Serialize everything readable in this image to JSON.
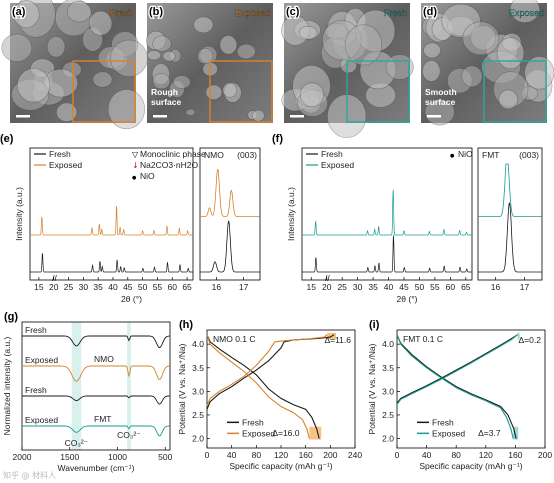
{
  "colors": {
    "fresh": "#1a1a1a",
    "exposed_nmo": "#d9822b",
    "exposed_fmt": "#1a9b8f",
    "box_nmo": "#d9822b",
    "box_fmt": "#2aa89b"
  },
  "sem": [
    {
      "label": "(a)",
      "tag": "Fresh",
      "tag_color": "#d9822b",
      "caption": ""
    },
    {
      "label": "(b)",
      "tag": "Exposed",
      "tag_color": "#d9822b",
      "caption": "Rough\nsurface"
    },
    {
      "label": "(c)",
      "tag": "Fresh",
      "tag_color": "#2aa89b",
      "caption": ""
    },
    {
      "label": "(d)",
      "tag": "Exposed",
      "tag_color": "#2aa89b",
      "caption": "Smooth\nsurface"
    }
  ],
  "chart_data": [
    {
      "id": "e",
      "label": "(e)",
      "type": "line",
      "title": "",
      "xlabel": "2θ (°)",
      "ylabel": "Intensity (a.u.)",
      "xlim": [
        12,
        67
      ],
      "xticks": [
        15,
        20,
        25,
        30,
        35,
        40,
        45,
        50,
        55,
        60,
        65
      ],
      "series": [
        {
          "name": "Fresh",
          "offset": 0,
          "peaks": [
            [
              16.2,
              0.62
            ],
            [
              33.1,
              0.22
            ],
            [
              35.6,
              0.35
            ],
            [
              36.4,
              0.18
            ],
            [
              41.4,
              0.4
            ],
            [
              42.6,
              0.18
            ],
            [
              43.8,
              0.14
            ],
            [
              50.1,
              0.12
            ],
            [
              54.0,
              0.16
            ],
            [
              58.4,
              0.32
            ],
            [
              62.6,
              0.24
            ],
            [
              65.4,
              0.12
            ]
          ]
        },
        {
          "name": "Exposed",
          "offset": 0.5,
          "peaks": [
            [
              16.0,
              0.6
            ],
            [
              32.9,
              0.24
            ],
            [
              35.4,
              0.36
            ],
            [
              36.2,
              0.2
            ],
            [
              41.2,
              0.95
            ],
            [
              42.4,
              0.26
            ],
            [
              43.6,
              0.18
            ],
            [
              50.0,
              0.14
            ],
            [
              53.8,
              0.15
            ],
            [
              58.2,
              0.3
            ],
            [
              62.4,
              0.22
            ],
            [
              65.2,
              0.14
            ]
          ]
        }
      ],
      "legend": [
        "Fresh",
        "Exposed"
      ],
      "phase_legend": [
        "Monoclinic phase",
        "Na2CO3·nH2O",
        "NiO"
      ],
      "inset": {
        "title": "NMO",
        "hkl": "(003)",
        "xlim": [
          15.4,
          17.6
        ],
        "xticks": [
          16,
          17
        ],
        "series": [
          {
            "name": "Fresh",
            "offset": 0,
            "peaks": [
              [
                16.45,
                0.7,
                0.09
              ],
              [
                15.95,
                0.14,
                0.08
              ]
            ]
          },
          {
            "name": "Exposed",
            "offset": 0.45,
            "peaks": [
              [
                16.05,
                0.65,
                0.09
              ],
              [
                16.55,
                0.36,
                0.08
              ],
              [
                15.75,
                0.12,
                0.07
              ]
            ]
          }
        ]
      }
    },
    {
      "id": "f",
      "label": "(f)",
      "type": "line",
      "title": "",
      "xlabel": "2θ (°)",
      "ylabel": "Intensity (a.u.)",
      "xlim": [
        12,
        67
      ],
      "xticks": [
        15,
        20,
        25,
        30,
        35,
        40,
        45,
        50,
        55,
        60,
        65
      ],
      "series": [
        {
          "name": "Fresh",
          "offset": 0,
          "peaks": [
            [
              16.5,
              0.48
            ],
            [
              33.3,
              0.15
            ],
            [
              35.6,
              0.2
            ],
            [
              36.9,
              0.3
            ],
            [
              41.6,
              1.2
            ],
            [
              45.1,
              0.15
            ],
            [
              53.3,
              0.13
            ],
            [
              58.0,
              0.19
            ],
            [
              63.1,
              0.16
            ],
            [
              65.3,
              0.1
            ]
          ]
        },
        {
          "name": "Exposed",
          "offset": 0.55,
          "peaks": [
            [
              16.4,
              0.45
            ],
            [
              33.2,
              0.14
            ],
            [
              35.5,
              0.19
            ],
            [
              36.8,
              0.28
            ],
            [
              41.5,
              1.5
            ],
            [
              45.0,
              0.14
            ],
            [
              53.2,
              0.12
            ],
            [
              57.9,
              0.18
            ],
            [
              63.0,
              0.15
            ],
            [
              65.2,
              0.09
            ]
          ]
        }
      ],
      "legend": [
        "Fresh",
        "Exposed"
      ],
      "phase_legend": [
        "NiO"
      ],
      "inset": {
        "title": "FMT",
        "hkl": "(003)",
        "xlim": [
          15.4,
          17.6
        ],
        "xticks": [
          16,
          17
        ],
        "series": [
          {
            "name": "Fresh",
            "offset": 0,
            "peaks": [
              [
                16.48,
                0.95,
                0.1
              ]
            ]
          },
          {
            "name": "Exposed",
            "offset": 0.1,
            "peaks": [
              [
                16.4,
                0.85,
                0.1
              ]
            ]
          }
        ]
      }
    },
    {
      "id": "g",
      "label": "(g)",
      "type": "line",
      "title": "",
      "xlabel": "Wavenumber (cm⁻¹)",
      "ylabel": "Normalized intensity (a.u.)",
      "xlim": [
        2000,
        450
      ],
      "xticks": [
        2000,
        1500,
        1000,
        500
      ],
      "series": [
        {
          "name": "Fresh",
          "group": "NMO",
          "offset": 3,
          "dips": [
            [
              1430,
              0.55,
              55
            ],
            [
              880,
              0.25,
              12
            ],
            [
              560,
              0.65,
              45
            ]
          ]
        },
        {
          "name": "Exposed",
          "group": "NMO",
          "offset": 2,
          "dips": [
            [
              1430,
              0.85,
              65
            ],
            [
              880,
              0.55,
              14
            ],
            [
              560,
              0.75,
              45
            ]
          ]
        },
        {
          "name": "Fresh",
          "group": "FMT",
          "offset": 1,
          "dips": [
            [
              1430,
              0.25,
              50
            ],
            [
              880,
              0.1,
              12
            ],
            [
              560,
              0.45,
              40
            ]
          ]
        },
        {
          "name": "Exposed",
          "group": "FMT",
          "offset": 0,
          "dips": [
            [
              1430,
              0.35,
              55
            ],
            [
              880,
              0.15,
              12
            ],
            [
              560,
              0.55,
              40
            ]
          ]
        }
      ],
      "group_labels": [
        "NMO",
        "FMT"
      ],
      "annotations": [
        "CO₃²⁻",
        "CO₃²⁻"
      ]
    },
    {
      "id": "h",
      "label": "(h)",
      "type": "line",
      "title": "NMO  0.1 C",
      "xlabel": "Specific capacity (mAh g⁻¹)",
      "ylabel": "Potential (V vs. Na⁺/Na)",
      "xlim": [
        0,
        240
      ],
      "ylim": [
        1.8,
        4.3
      ],
      "xticks": [
        0,
        40,
        80,
        120,
        160,
        200,
        240
      ],
      "yticks": [
        2.0,
        2.5,
        3.0,
        3.5,
        4.0
      ],
      "series": [
        {
          "name": "Fresh",
          "charge": [
            [
              0,
              2.62
            ],
            [
              5,
              2.78
            ],
            [
              20,
              2.95
            ],
            [
              40,
              3.1
            ],
            [
              60,
              3.28
            ],
            [
              80,
              3.45
            ],
            [
              100,
              3.65
            ],
            [
              120,
              3.92
            ],
            [
              125,
              4.05
            ],
            [
              140,
              4.09
            ],
            [
              180,
              4.12
            ],
            [
              200,
              4.15
            ],
            [
              206,
              4.2
            ]
          ],
          "discharge": [
            [
              0,
              4.2
            ],
            [
              5,
              4.05
            ],
            [
              20,
              3.9
            ],
            [
              40,
              3.72
            ],
            [
              60,
              3.55
            ],
            [
              80,
              3.35
            ],
            [
              100,
              3.05
            ],
            [
              120,
              2.85
            ],
            [
              140,
              2.72
            ],
            [
              160,
              2.62
            ],
            [
              170,
              2.45
            ],
            [
              178,
              2.2
            ],
            [
              182,
              2.0
            ]
          ]
        },
        {
          "name": "Exposed",
          "charge": [
            [
              0,
              2.7
            ],
            [
              5,
              2.85
            ],
            [
              20,
              3.0
            ],
            [
              40,
              3.15
            ],
            [
              60,
              3.32
            ],
            [
              80,
              3.55
            ],
            [
              100,
              3.85
            ],
            [
              110,
              4.05
            ],
            [
              130,
              4.08
            ],
            [
              170,
              4.12
            ],
            [
              190,
              4.15
            ],
            [
              195,
              4.2
            ]
          ],
          "discharge": [
            [
              0,
              4.2
            ],
            [
              5,
              4.0
            ],
            [
              20,
              3.82
            ],
            [
              40,
              3.62
            ],
            [
              60,
              3.42
            ],
            [
              80,
              3.18
            ],
            [
              100,
              2.88
            ],
            [
              120,
              2.68
            ],
            [
              140,
              2.55
            ],
            [
              155,
              2.4
            ],
            [
              162,
              2.2
            ],
            [
              166,
              2.0
            ]
          ]
        }
      ],
      "annotations": [
        "Δ=11.6",
        "Δ=16.0"
      ],
      "legend": [
        "Fresh",
        "Exposed"
      ]
    },
    {
      "id": "i",
      "label": "(i)",
      "type": "line",
      "title": "FMT  0.1 C",
      "xlabel": "Specific capacity (mAh g⁻¹)",
      "ylabel": "Potential (V vs. Na⁺/Na)",
      "xlim": [
        0,
        200
      ],
      "ylim": [
        1.8,
        4.3
      ],
      "xticks": [
        0,
        40,
        80,
        120,
        160,
        200
      ],
      "yticks": [
        2.0,
        2.5,
        3.0,
        3.5,
        4.0
      ],
      "series": [
        {
          "name": "Fresh",
          "charge": [
            [
              0,
              2.75
            ],
            [
              5,
              2.85
            ],
            [
              20,
              2.97
            ],
            [
              40,
              3.12
            ],
            [
              60,
              3.28
            ],
            [
              80,
              3.45
            ],
            [
              100,
              3.62
            ],
            [
              120,
              3.8
            ],
            [
              140,
              3.98
            ],
            [
              155,
              4.12
            ],
            [
              163,
              4.2
            ]
          ],
          "discharge": [
            [
              0,
              4.2
            ],
            [
              5,
              4.02
            ],
            [
              20,
              3.78
            ],
            [
              40,
              3.52
            ],
            [
              60,
              3.3
            ],
            [
              80,
              3.1
            ],
            [
              100,
              2.95
            ],
            [
              120,
              2.82
            ],
            [
              140,
              2.68
            ],
            [
              150,
              2.5
            ],
            [
              158,
              2.2
            ],
            [
              161,
              2.0
            ]
          ]
        },
        {
          "name": "Exposed",
          "charge": [
            [
              0,
              2.72
            ],
            [
              5,
              2.83
            ],
            [
              20,
              2.95
            ],
            [
              40,
              3.1
            ],
            [
              60,
              3.26
            ],
            [
              80,
              3.43
            ],
            [
              100,
              3.6
            ],
            [
              120,
              3.78
            ],
            [
              140,
              3.96
            ],
            [
              155,
              4.1
            ],
            [
              163,
              4.2
            ]
          ],
          "discharge": [
            [
              0,
              4.2
            ],
            [
              5,
              4.0
            ],
            [
              20,
              3.75
            ],
            [
              40,
              3.5
            ],
            [
              60,
              3.28
            ],
            [
              80,
              3.08
            ],
            [
              100,
              2.93
            ],
            [
              120,
              2.8
            ],
            [
              140,
              2.65
            ],
            [
              148,
              2.45
            ],
            [
              154,
              2.2
            ],
            [
              157,
              2.0
            ]
          ]
        }
      ],
      "annotations": [
        "Δ=0.2",
        "Δ=3.7"
      ],
      "legend": [
        "Fresh",
        "Exposed"
      ]
    }
  ],
  "watermark": "知乎 @ 材料人"
}
